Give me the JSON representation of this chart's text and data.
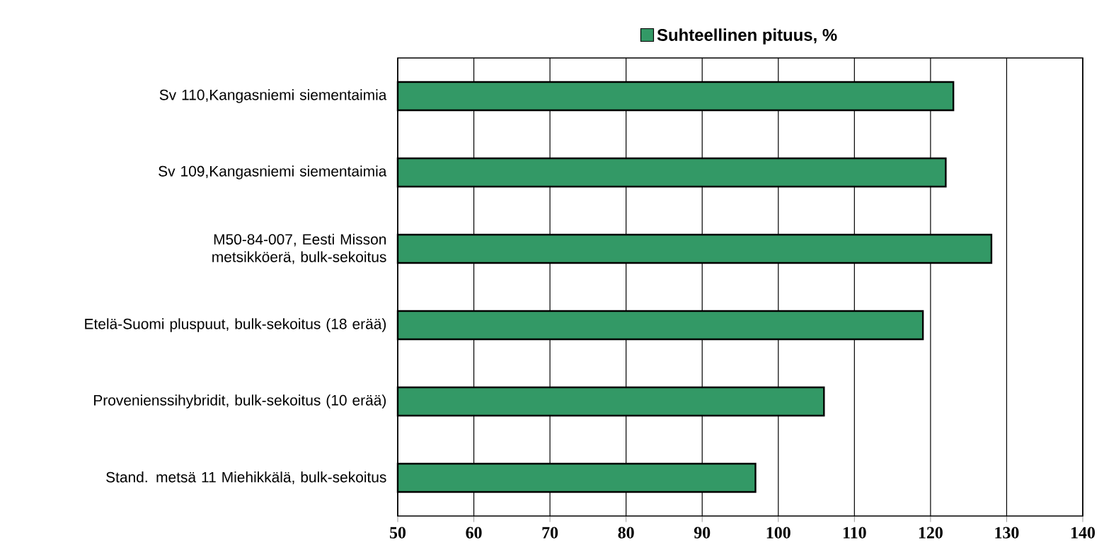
{
  "chart_data": {
    "type": "bar",
    "orientation": "horizontal",
    "categories": [
      "Sv 110,Kangasniemi siementaimia",
      "Sv 109,Kangasniemi siementaimia",
      "M50-84-007, Eesti Misson metsikköerä, bulk-sekoitus",
      "Etelä-Suomi pluspuut, bulk-sekoitus (18 erää)",
      "Provenienssihybridit, bulk-sekoitus (10 erää)",
      "Stand. metsä 11 Miehikkälä, bulk-sekoitus"
    ],
    "series": [
      {
        "name": "Suhteellinen pituus, %",
        "color": "#339966",
        "values": [
          123,
          122,
          128,
          119,
          106,
          97
        ]
      }
    ],
    "xlim": [
      50,
      140
    ],
    "xticks": [
      50,
      60,
      70,
      80,
      90,
      100,
      110,
      120,
      130,
      140
    ],
    "grid": "x",
    "legend": "top"
  }
}
